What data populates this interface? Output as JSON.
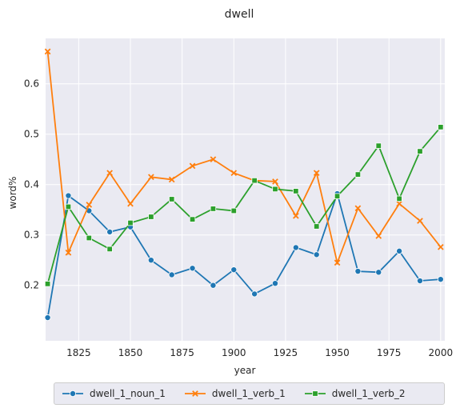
{
  "chart_data": {
    "type": "line",
    "title": "dwell",
    "xlabel": "year",
    "ylabel": "word%",
    "xlim": [
      1809,
      2002
    ],
    "ylim": [
      0.09,
      0.69
    ],
    "xticks": [
      1825,
      1850,
      1875,
      1900,
      1925,
      1950,
      1975,
      2000
    ],
    "yticks": [
      0.2,
      0.3,
      0.4,
      0.5,
      0.6
    ],
    "xtick_labels": [
      "1825",
      "1850",
      "1875",
      "1900",
      "1925",
      "1950",
      "1975",
      "2000"
    ],
    "ytick_labels": [
      "0.2",
      "0.3",
      "0.4",
      "0.5",
      "0.6"
    ],
    "grid": true,
    "legend_position": "bottom-center",
    "x": [
      1810,
      1820,
      1830,
      1840,
      1850,
      1860,
      1870,
      1880,
      1890,
      1900,
      1910,
      1920,
      1930,
      1940,
      1950,
      1960,
      1970,
      1980,
      1990,
      2000
    ],
    "series": [
      {
        "name": "dwell_1_noun_1",
        "color": "#1f77b4",
        "marker": "circle",
        "values": [
          0.136,
          0.378,
          0.348,
          0.306,
          0.316,
          0.25,
          0.221,
          0.234,
          0.2,
          0.231,
          0.183,
          0.204,
          0.275,
          0.261,
          0.382,
          0.228,
          0.226,
          0.268,
          0.209,
          0.212
        ]
      },
      {
        "name": "dwell_1_verb_1",
        "color": "#ff7f0e",
        "marker": "x",
        "values": [
          0.664,
          0.265,
          0.36,
          0.423,
          0.362,
          0.415,
          0.41,
          0.437,
          0.45,
          0.423,
          0.408,
          0.406,
          0.338,
          0.423,
          0.245,
          0.353,
          0.298,
          0.362,
          0.328,
          0.276
        ]
      },
      {
        "name": "dwell_1_verb_2",
        "color": "#2ca02c",
        "marker": "square",
        "values": [
          0.203,
          0.356,
          0.294,
          0.272,
          0.324,
          0.336,
          0.371,
          0.331,
          0.352,
          0.348,
          0.408,
          0.391,
          0.387,
          0.317,
          0.377,
          0.42,
          0.477,
          0.372,
          0.466,
          0.514
        ]
      }
    ]
  }
}
